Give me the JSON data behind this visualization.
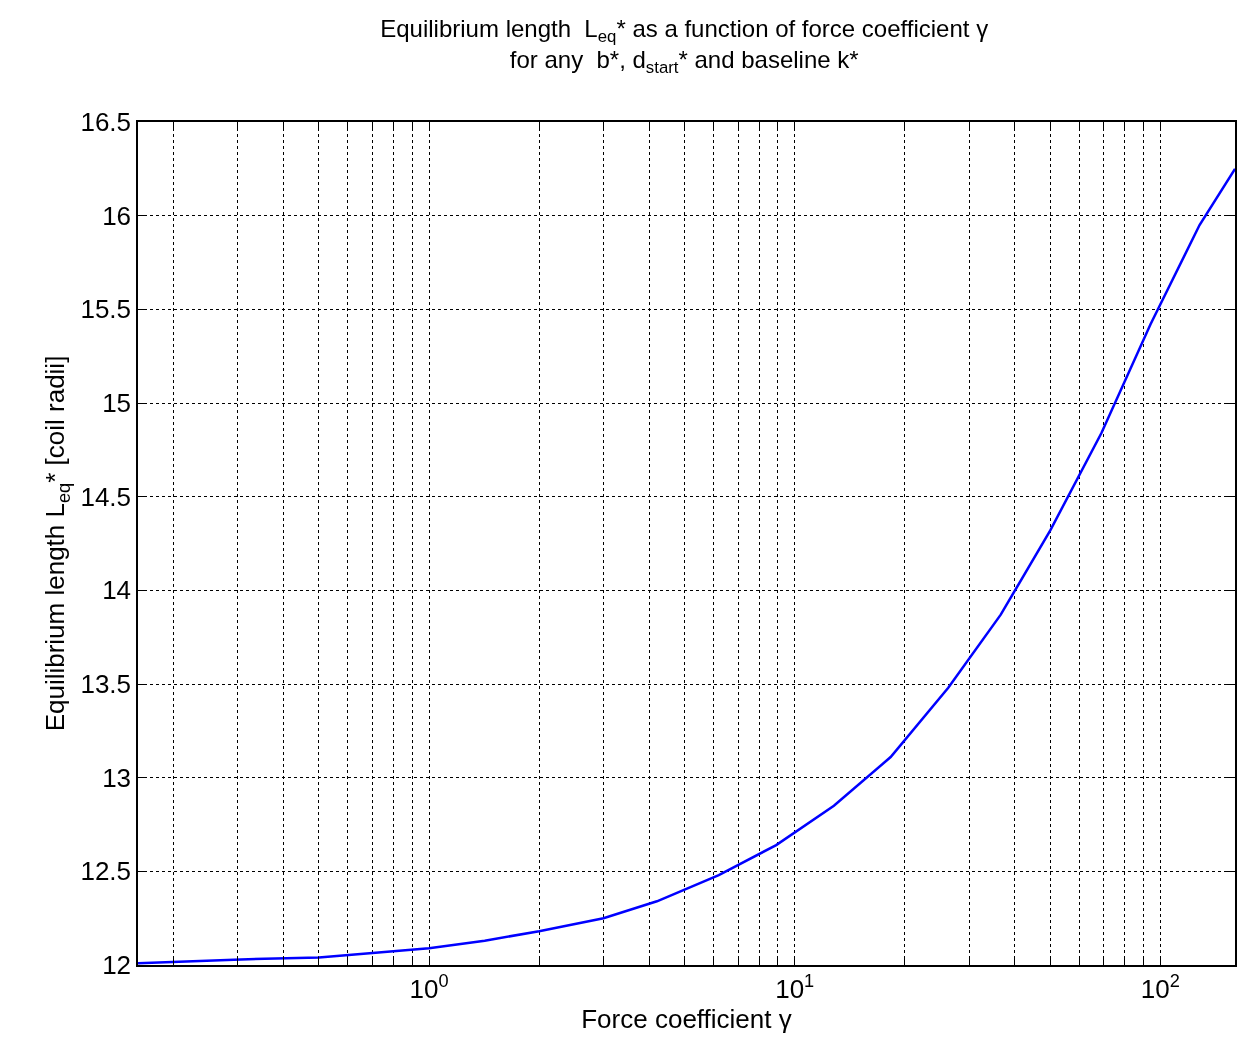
{
  "chart_data": {
    "type": "line",
    "title": "Equilibrium length  L$_{eq}$* as a function of force coefficient γ",
    "subtitle": "for any  b*, d$_{start}$* and baseline k*",
    "xlabel": "Force coefficient γ",
    "ylabel": "Equilibrium length L$_{eq}$* [coil radii]",
    "x": [
      0.16,
      0.306,
      0.5,
      1,
      1.42,
      2,
      3,
      4.2,
      6.2,
      8.9,
      12.8,
      18.3,
      26.3,
      36.6,
      50,
      69,
      94,
      128,
      160
    ],
    "series": [
      {
        "color": "#0000ff",
        "values": [
          12.01,
          12.03,
          12.04,
          12.09,
          12.13,
          12.18,
          12.25,
          12.34,
          12.48,
          12.64,
          12.85,
          13.11,
          13.48,
          13.87,
          14.32,
          14.84,
          15.42,
          15.95,
          16.25
        ]
      }
    ],
    "log": "x",
    "xlim": [
      0.16,
      160
    ],
    "ylim": [
      12,
      16.5
    ],
    "xticks": [
      {
        "value": 0.2,
        "label": null
      },
      {
        "value": 0.3,
        "label": null
      },
      {
        "value": 0.4,
        "label": null
      },
      {
        "value": 0.5,
        "label": null
      },
      {
        "value": 0.6,
        "label": null
      },
      {
        "value": 0.7,
        "label": null
      },
      {
        "value": 0.8,
        "label": null
      },
      {
        "value": 0.9,
        "label": null
      },
      {
        "value": 1,
        "label": "10$^{0}$"
      },
      {
        "value": 2,
        "label": null
      },
      {
        "value": 3,
        "label": null
      },
      {
        "value": 4,
        "label": null
      },
      {
        "value": 5,
        "label": null
      },
      {
        "value": 6,
        "label": null
      },
      {
        "value": 7,
        "label": null
      },
      {
        "value": 8,
        "label": null
      },
      {
        "value": 9,
        "label": null
      },
      {
        "value": 10,
        "label": "10$^{1}$"
      },
      {
        "value": 20,
        "label": null
      },
      {
        "value": 30,
        "label": null
      },
      {
        "value": 40,
        "label": null
      },
      {
        "value": 50,
        "label": null
      },
      {
        "value": 60,
        "label": null
      },
      {
        "value": 70,
        "label": null
      },
      {
        "value": 80,
        "label": null
      },
      {
        "value": 90,
        "label": null
      },
      {
        "value": 100,
        "label": "10$^{2}$"
      }
    ],
    "yticks": [
      12,
      12.5,
      13,
      13.5,
      14,
      14.5,
      15,
      15.5,
      16,
      16.5
    ],
    "grid": true,
    "line_style": "solid",
    "marker": "none"
  }
}
